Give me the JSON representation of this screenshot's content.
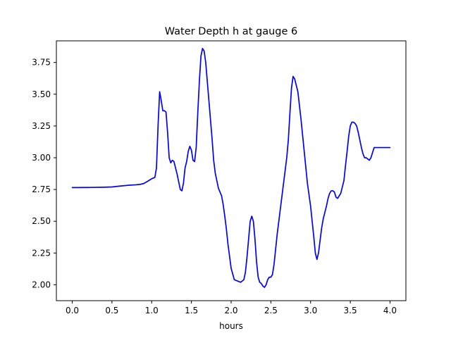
{
  "chart_data": {
    "type": "line",
    "title": "Water Depth h at gauge 6",
    "xlabel": "hours",
    "ylabel": "",
    "xlim": [
      -0.2,
      4.2
    ],
    "ylim": [
      1.875,
      3.92
    ],
    "xticks": [
      0.0,
      0.5,
      1.0,
      1.5,
      2.0,
      2.5,
      3.0,
      3.5,
      4.0
    ],
    "xtick_labels": [
      "0.0",
      "0.5",
      "1.0",
      "1.5",
      "2.0",
      "2.5",
      "3.0",
      "3.5",
      "4.0"
    ],
    "yticks": [
      2.0,
      2.25,
      2.5,
      2.75,
      3.0,
      3.25,
      3.5,
      3.75
    ],
    "ytick_labels": [
      "2.00",
      "2.25",
      "2.50",
      "2.75",
      "3.00",
      "3.25",
      "3.50",
      "3.75"
    ],
    "grid": false,
    "series": [
      {
        "color": "#0000ff",
        "x": [
          0.0,
          0.2,
          0.4,
          0.5,
          0.6,
          0.7,
          0.8,
          0.85,
          0.9,
          0.95,
          1.0,
          1.04,
          1.06,
          1.08,
          1.1,
          1.12,
          1.14,
          1.16,
          1.18,
          1.2,
          1.22,
          1.24,
          1.26,
          1.28,
          1.3,
          1.32,
          1.34,
          1.36,
          1.38,
          1.4,
          1.42,
          1.44,
          1.46,
          1.48,
          1.5,
          1.52,
          1.54,
          1.56,
          1.58,
          1.6,
          1.62,
          1.64,
          1.66,
          1.68,
          1.7,
          1.72,
          1.74,
          1.76,
          1.78,
          1.8,
          1.84,
          1.88,
          1.9,
          1.92,
          1.94,
          1.96,
          2.0,
          2.04,
          2.08,
          2.12,
          2.16,
          2.18,
          2.2,
          2.22,
          2.24,
          2.26,
          2.28,
          2.3,
          2.32,
          2.34,
          2.36,
          2.38,
          2.4,
          2.42,
          2.44,
          2.46,
          2.48,
          2.5,
          2.52,
          2.54,
          2.56,
          2.58,
          2.6,
          2.62,
          2.64,
          2.66,
          2.68,
          2.7,
          2.72,
          2.74,
          2.76,
          2.78,
          2.8,
          2.84,
          2.88,
          2.92,
          2.96,
          3.0,
          3.02,
          3.04,
          3.06,
          3.08,
          3.1,
          3.12,
          3.14,
          3.16,
          3.18,
          3.2,
          3.22,
          3.24,
          3.26,
          3.28,
          3.3,
          3.32,
          3.34,
          3.38,
          3.42,
          3.44,
          3.46,
          3.48,
          3.5,
          3.52,
          3.54,
          3.56,
          3.58,
          3.6,
          3.62,
          3.64,
          3.66,
          3.68,
          3.7,
          3.72,
          3.74,
          3.76,
          3.78,
          3.8,
          3.82,
          3.84,
          3.86,
          3.88,
          3.9,
          3.92,
          3.94,
          3.96,
          3.98,
          4.0
        ],
        "y": [
          2.765,
          2.766,
          2.768,
          2.77,
          2.777,
          2.783,
          2.787,
          2.79,
          2.797,
          2.815,
          2.835,
          2.845,
          2.92,
          3.25,
          3.52,
          3.45,
          3.37,
          3.37,
          3.36,
          3.2,
          3.0,
          2.96,
          2.98,
          2.97,
          2.92,
          2.87,
          2.81,
          2.75,
          2.74,
          2.8,
          2.92,
          2.97,
          3.05,
          3.09,
          3.06,
          2.98,
          2.97,
          3.08,
          3.35,
          3.6,
          3.8,
          3.86,
          3.84,
          3.75,
          3.6,
          3.45,
          3.3,
          3.15,
          2.98,
          2.88,
          2.76,
          2.7,
          2.63,
          2.54,
          2.44,
          2.32,
          2.13,
          2.04,
          2.03,
          2.02,
          2.04,
          2.1,
          2.22,
          2.36,
          2.5,
          2.54,
          2.5,
          2.36,
          2.18,
          2.06,
          2.02,
          2.01,
          1.99,
          1.98,
          2.0,
          2.04,
          2.06,
          2.06,
          2.08,
          2.16,
          2.28,
          2.4,
          2.5,
          2.6,
          2.7,
          2.8,
          2.9,
          3.0,
          3.14,
          3.35,
          3.55,
          3.64,
          3.62,
          3.52,
          3.3,
          3.05,
          2.8,
          2.62,
          2.5,
          2.38,
          2.25,
          2.2,
          2.25,
          2.35,
          2.45,
          2.52,
          2.57,
          2.62,
          2.68,
          2.72,
          2.74,
          2.74,
          2.73,
          2.69,
          2.68,
          2.72,
          2.82,
          2.94,
          3.05,
          3.17,
          3.25,
          3.28,
          3.28,
          3.27,
          3.25,
          3.2,
          3.14,
          3.08,
          3.03,
          3.0,
          3.0,
          2.99,
          2.98,
          3.0,
          3.04,
          3.08,
          3.08,
          3.08,
          3.08,
          3.08,
          3.08,
          3.08,
          3.08,
          3.08,
          3.08,
          3.08
        ]
      }
    ]
  }
}
